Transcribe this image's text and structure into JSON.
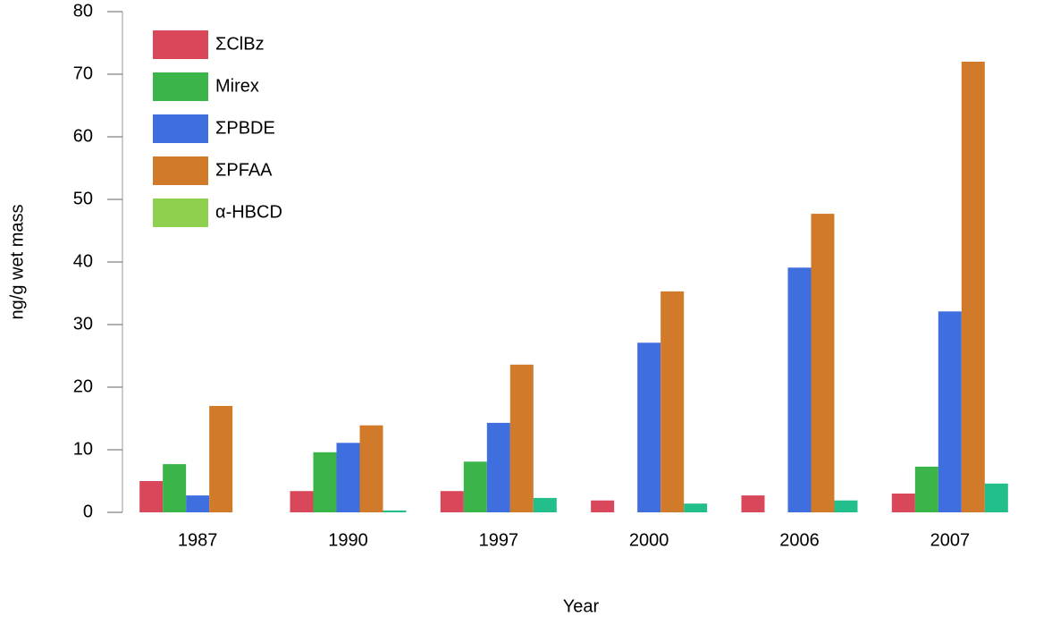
{
  "chart_data": {
    "type": "bar",
    "x_label": "Year",
    "y_label": "ng/g wet mass",
    "categories": [
      "1987",
      "1990",
      "1997",
      "2000",
      "2006",
      "2007"
    ],
    "series": [
      {
        "name": "ΣClBz",
        "color": "#d9475b",
        "values": [
          5.0,
          3.4,
          3.4,
          1.9,
          2.7,
          3.0
        ]
      },
      {
        "name": "Mirex",
        "color": "#3bb44a",
        "values": [
          7.7,
          9.6,
          8.1,
          null,
          null,
          7.3
        ]
      },
      {
        "name": "ΣPBDE",
        "color": "#3f6fde",
        "values": [
          2.7,
          11.1,
          14.3,
          27.1,
          39.1,
          32.1
        ]
      },
      {
        "name": "ΣPFAA",
        "color": "#d07a2a",
        "values": [
          17.0,
          13.9,
          23.6,
          35.3,
          47.7,
          72.0
        ]
      },
      {
        "name": "α-HBCD",
        "color": "#22bf8c",
        "legend_color": "#90d050",
        "values": [
          null,
          0.3,
          2.3,
          1.4,
          1.9,
          4.6
        ]
      }
    ],
    "ylim": [
      0,
      80
    ],
    "yticks": [
      0,
      10,
      20,
      30,
      40,
      50,
      60,
      70,
      80
    ],
    "grid": false,
    "legend": "upper left"
  }
}
